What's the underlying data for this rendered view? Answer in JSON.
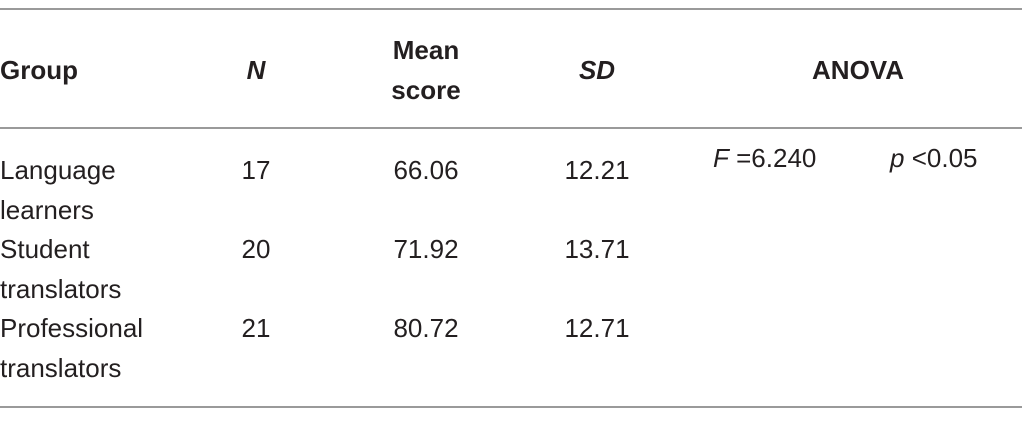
{
  "table": {
    "header": {
      "group": "Group",
      "n": "N",
      "mean": [
        "Mean",
        "score"
      ],
      "sd": "SD",
      "anova": "ANOVA"
    },
    "rows": [
      {
        "group": [
          "Language",
          "learners"
        ],
        "n": "17",
        "mean": "66.06",
        "sd": "12.21"
      },
      {
        "group": [
          "Student",
          "translators"
        ],
        "n": "20",
        "mean": "71.92",
        "sd": "13.71"
      },
      {
        "group": [
          "Professional",
          "translators"
        ],
        "n": "21",
        "mean": "80.72",
        "sd": "12.71"
      }
    ],
    "anova": {
      "f_symbol": "F",
      "f_value": "=6.240",
      "p_symbol": "p",
      "p_value": "<0.05"
    }
  }
}
